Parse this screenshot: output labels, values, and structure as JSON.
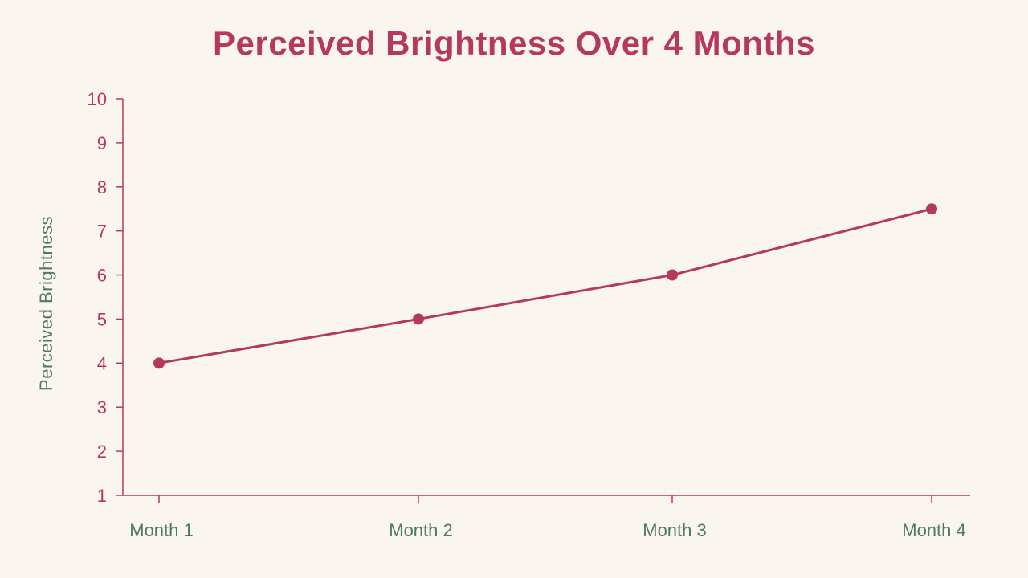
{
  "chart_data": {
    "type": "line",
    "title": "Perceived Brightness Over 4 Months",
    "xlabel": "",
    "ylabel": "Perceived Brightness",
    "categories": [
      "Month 1",
      "Month 2",
      "Month 3",
      "Month 4"
    ],
    "series": [
      {
        "values": [
          4,
          5,
          6,
          7.5
        ]
      }
    ],
    "ylim": [
      1,
      10
    ],
    "yticks": [
      1,
      2,
      3,
      4,
      5,
      6,
      7,
      8,
      9,
      10
    ],
    "grid": false,
    "legend": "none"
  },
  "colors": {
    "background": "#fbf5f0",
    "accent": "#b5395f",
    "label_green": "#4e7a65"
  }
}
